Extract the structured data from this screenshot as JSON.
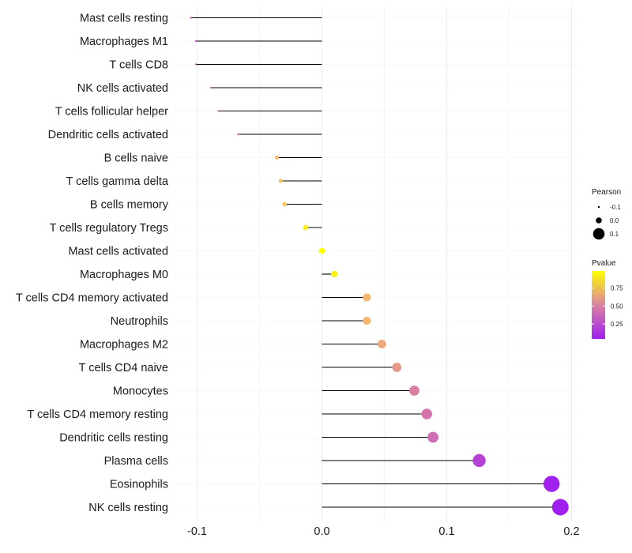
{
  "chart_data": {
    "type": "lollipop",
    "title": "",
    "xlabel": "",
    "ylabel": "",
    "xlim": [
      -0.105,
      0.21
    ],
    "x_ticks": [
      -0.1,
      0.0,
      0.1,
      0.2
    ],
    "x_tick_labels": [
      "-0.1",
      "0.0",
      "0.1",
      "0.2"
    ],
    "grid": true,
    "categories": [
      "Mast cells resting",
      "Macrophages M1",
      "T cells CD8",
      "NK cells activated",
      "T cells follicular helper",
      "Dendritic cells activated",
      "B cells naive",
      "T cells gamma delta",
      "B cells memory",
      "T cells regulatory  Tregs",
      "Mast cells activated",
      "Macrophages M0",
      "T cells CD4 memory activated",
      "Neutrophils",
      "Macrophages M2",
      "T cells CD4 naive",
      "Monocytes",
      "T cells CD4 memory resting",
      "Dendritic cells resting",
      "Plasma cells",
      "Eosinophils",
      "NK cells resting"
    ],
    "pearson": [
      -0.105,
      -0.101,
      -0.101,
      -0.089,
      -0.083,
      -0.067,
      -0.036,
      -0.033,
      -0.03,
      -0.013,
      0.0,
      0.01,
      0.036,
      0.036,
      0.048,
      0.06,
      0.074,
      0.084,
      0.089,
      0.126,
      0.184,
      0.191
    ],
    "pvalue": [
      0.3,
      0.33,
      0.33,
      0.45,
      0.48,
      0.55,
      0.75,
      0.78,
      0.8,
      0.92,
      0.99,
      0.94,
      0.75,
      0.75,
      0.68,
      0.62,
      0.5,
      0.45,
      0.42,
      0.2,
      0.05,
      0.04
    ],
    "legend": {
      "position": "right",
      "size_title": "Pearson",
      "size_labels": [
        "-0.1",
        "0.0",
        "0.1"
      ],
      "size_values": [
        -0.1,
        0.0,
        0.1
      ],
      "color_title": "Pvalue",
      "color_tick_labels": [
        "0.75",
        "0.50",
        "0.25"
      ],
      "color_tick_values": [
        0.75,
        0.5,
        0.25
      ],
      "color_range": [
        0.04,
        0.99
      ],
      "color_low": "#a020f0",
      "color_high": "#ffff00"
    },
    "colors": {
      "stem": "#000000",
      "grid": "#ebebeb"
    }
  }
}
